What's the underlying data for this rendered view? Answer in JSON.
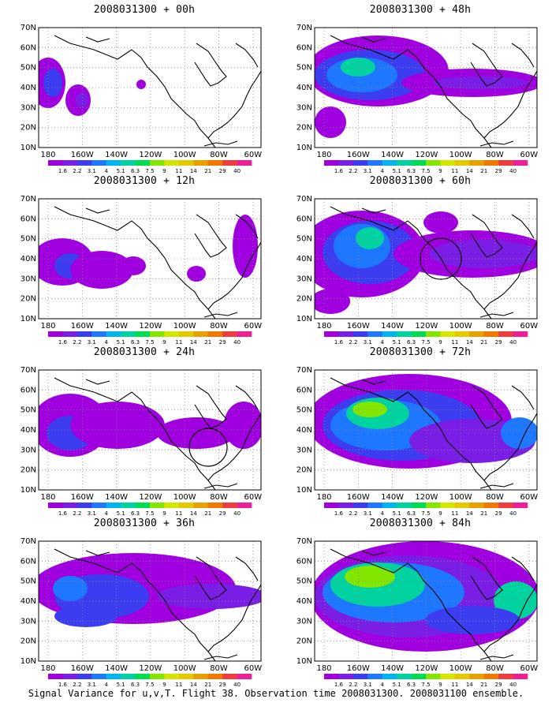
{
  "figure": {
    "footer": "Signal Variance for u,v,T. Flight 38. Observation time 2008031300. 2008031100 ensemble."
  },
  "panels": [
    {
      "title": "2008031300 + 00h",
      "lead": 0
    },
    {
      "title": "2008031300 + 48h",
      "lead": 48
    },
    {
      "title": "2008031300 + 12h",
      "lead": 12
    },
    {
      "title": "2008031300 + 60h",
      "lead": 60
    },
    {
      "title": "2008031300 + 24h",
      "lead": 24
    },
    {
      "title": "2008031300 + 72h",
      "lead": 72
    },
    {
      "title": "2008031300 + 36h",
      "lead": 36
    },
    {
      "title": "2008031300 + 84h",
      "lead": 84
    }
  ],
  "map": {
    "lat_labels": [
      "70N",
      "60N",
      "50N",
      "40N",
      "30N",
      "20N",
      "10N"
    ],
    "lon_labels": [
      "180",
      "160W",
      "140W",
      "120W",
      "100W",
      "80W",
      "60W"
    ],
    "lat_range": [
      10,
      70
    ],
    "lon_range_deg_east": [
      170,
      300
    ]
  },
  "colorbar": {
    "ticks": [
      "1.6",
      "2.2",
      "3.1",
      "4",
      "5.1",
      "6.3",
      "7.5",
      "9",
      "11",
      "14",
      "21",
      "29",
      "40"
    ],
    "colors": [
      "#a000e0",
      "#7a1ee6",
      "#3c3cf0",
      "#1e78ff",
      "#00b4f0",
      "#00d2a0",
      "#00dc50",
      "#82e600",
      "#d2e600",
      "#e6c800",
      "#e6a000",
      "#f07800",
      "#f03c3c",
      "#f01e96"
    ]
  },
  "palette": {
    "coast": "#000000",
    "grid": "#888888",
    "background": "#ffffff"
  }
}
